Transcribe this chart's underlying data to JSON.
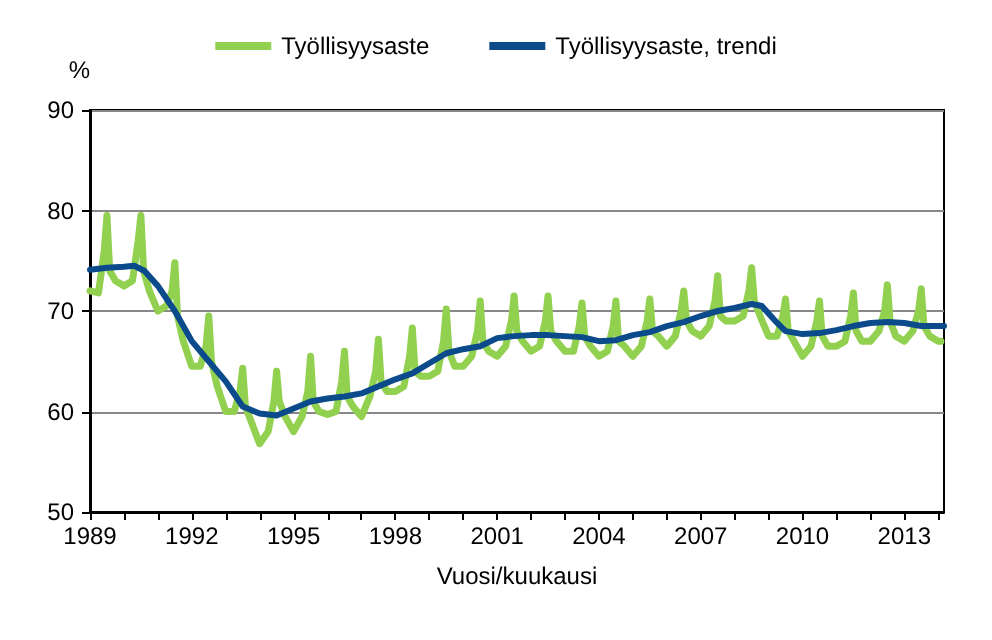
{
  "chart_data": {
    "type": "line",
    "ylabel": "%",
    "xlabel": "Vuosi/kuukausi",
    "legend": "top",
    "grid": "y",
    "line_style": "solid",
    "marker": "none",
    "xlim": [
      1989,
      2014.17
    ],
    "xticks": [
      1989,
      {
        "value": 1990,
        "label": null
      },
      {
        "value": 1991,
        "label": null
      },
      1992,
      {
        "value": 1993,
        "label": null
      },
      {
        "value": 1994,
        "label": null
      },
      1995,
      {
        "value": 1996,
        "label": null
      },
      {
        "value": 1997,
        "label": null
      },
      1998,
      {
        "value": 1999,
        "label": null
      },
      {
        "value": 2000,
        "label": null
      },
      2001,
      {
        "value": 2002,
        "label": null
      },
      {
        "value": 2003,
        "label": null
      },
      2004,
      {
        "value": 2005,
        "label": null
      },
      {
        "value": 2006,
        "label": null
      },
      2007,
      {
        "value": 2008,
        "label": null
      },
      {
        "value": 2009,
        "label": null
      },
      2010,
      {
        "value": 2011,
        "label": null
      },
      {
        "value": 2012,
        "label": null
      },
      2013,
      {
        "value": 2014,
        "label": null
      }
    ],
    "ylim": [
      50,
      90
    ],
    "yticks": [
      50,
      60,
      70,
      80,
      90
    ],
    "series": [
      {
        "name": "Työllisyysaste",
        "color": "#92d050",
        "x": [
          1989,
          1989.25,
          1989.42,
          1989.5,
          1989.58,
          1989.75,
          1990,
          1990.25,
          1990.42,
          1990.5,
          1990.58,
          1990.75,
          1991,
          1991.25,
          1991.42,
          1991.5,
          1991.58,
          1991.75,
          1992,
          1992.25,
          1992.42,
          1992.5,
          1992.58,
          1992.75,
          1993,
          1993.25,
          1993.42,
          1993.5,
          1993.58,
          1993.75,
          1994,
          1994.25,
          1994.42,
          1994.5,
          1994.58,
          1994.75,
          1995,
          1995.25,
          1995.42,
          1995.5,
          1995.58,
          1995.75,
          1996,
          1996.25,
          1996.42,
          1996.5,
          1996.58,
          1996.75,
          1997,
          1997.25,
          1997.42,
          1997.5,
          1997.58,
          1997.75,
          1998,
          1998.25,
          1998.42,
          1998.5,
          1998.58,
          1998.75,
          1999,
          1999.25,
          1999.42,
          1999.5,
          1999.58,
          1999.75,
          2000,
          2000.25,
          2000.42,
          2000.5,
          2000.58,
          2000.75,
          2001,
          2001.25,
          2001.42,
          2001.5,
          2001.58,
          2001.75,
          2002,
          2002.25,
          2002.42,
          2002.5,
          2002.58,
          2002.75,
          2003,
          2003.25,
          2003.42,
          2003.5,
          2003.58,
          2003.75,
          2004,
          2004.25,
          2004.42,
          2004.5,
          2004.58,
          2004.75,
          2005,
          2005.25,
          2005.42,
          2005.5,
          2005.58,
          2005.75,
          2006,
          2006.25,
          2006.42,
          2006.5,
          2006.58,
          2006.75,
          2007,
          2007.25,
          2007.42,
          2007.5,
          2007.58,
          2007.75,
          2008,
          2008.25,
          2008.42,
          2008.5,
          2008.58,
          2008.75,
          2009,
          2009.25,
          2009.42,
          2009.5,
          2009.58,
          2009.75,
          2010,
          2010.25,
          2010.42,
          2010.5,
          2010.58,
          2010.75,
          2011,
          2011.25,
          2011.42,
          2011.5,
          2011.58,
          2011.75,
          2012,
          2012.25,
          2012.42,
          2012.5,
          2012.58,
          2012.75,
          2013,
          2013.25,
          2013.42,
          2013.5,
          2013.58,
          2013.75,
          2014,
          2014.08
        ],
        "values": [
          72,
          71.8,
          76,
          79.5,
          74,
          73,
          72.5,
          73,
          77,
          79.5,
          74,
          72,
          70,
          70.5,
          72,
          74.8,
          69.5,
          67,
          64.5,
          64.5,
          66.5,
          69.5,
          65,
          62.5,
          60,
          60,
          62,
          64.3,
          60.5,
          59,
          56.8,
          58,
          61,
          64,
          61,
          59.5,
          58,
          59.5,
          62,
          65.5,
          61,
          60,
          59.7,
          60,
          63,
          66,
          61.5,
          60.5,
          59.5,
          61.5,
          64,
          67.2,
          63,
          62,
          62,
          62.5,
          65.5,
          68.3,
          64,
          63.5,
          63.5,
          64,
          67,
          70.2,
          66,
          64.5,
          64.5,
          65.5,
          68,
          71,
          67,
          66,
          65.5,
          66.5,
          69,
          71.5,
          68,
          67,
          66,
          66.5,
          69,
          71.5,
          68,
          67,
          66,
          66,
          68.5,
          70.8,
          67.5,
          66.5,
          65.5,
          66,
          68.5,
          71,
          67,
          66.5,
          65.5,
          66.5,
          69,
          71.2,
          68,
          67.5,
          66.5,
          67.5,
          70,
          72,
          69,
          68,
          67.5,
          68.5,
          71,
          73.5,
          69.5,
          69,
          69,
          69.5,
          72,
          74.3,
          71,
          69.5,
          67.5,
          67.5,
          69.5,
          71.2,
          68,
          67,
          65.5,
          66.5,
          69,
          71,
          67.5,
          66.5,
          66.5,
          67,
          69.5,
          71.8,
          68,
          67,
          67,
          68,
          70,
          72.6,
          69,
          67.5,
          67,
          68,
          70,
          72.2,
          68.5,
          67.5,
          67,
          67
        ]
      },
      {
        "name": "Työllisyysaste, trendi",
        "color": "#0b4a8b",
        "x": [
          1989,
          1989.5,
          1990,
          1990.3,
          1990.6,
          1991,
          1991.5,
          1992,
          1992.5,
          1993,
          1993.5,
          1994,
          1994.5,
          1995,
          1995.5,
          1996,
          1996.5,
          1997,
          1997.5,
          1998,
          1998.5,
          1999,
          1999.5,
          2000,
          2000.5,
          2001,
          2001.5,
          2002,
          2002.5,
          2003,
          2003.5,
          2004,
          2004.5,
          2005,
          2005.5,
          2006,
          2006.5,
          2007,
          2007.5,
          2008,
          2008.5,
          2008.8,
          2009.2,
          2009.5,
          2010,
          2010.5,
          2011,
          2011.5,
          2012,
          2012.5,
          2013,
          2013.5,
          2014.17
        ],
        "values": [
          74.1,
          74.3,
          74.4,
          74.5,
          74,
          72.5,
          70,
          67,
          65,
          63,
          60.5,
          59.8,
          59.6,
          60.3,
          61,
          61.3,
          61.5,
          61.8,
          62.5,
          63.2,
          63.8,
          64.8,
          65.8,
          66.2,
          66.5,
          67.3,
          67.5,
          67.6,
          67.6,
          67.5,
          67.4,
          67,
          67.1,
          67.6,
          67.9,
          68.5,
          68.9,
          69.5,
          70,
          70.3,
          70.7,
          70.5,
          69,
          68,
          67.7,
          67.8,
          68.1,
          68.5,
          68.8,
          68.9,
          68.8,
          68.5,
          68.5
        ]
      }
    ]
  }
}
